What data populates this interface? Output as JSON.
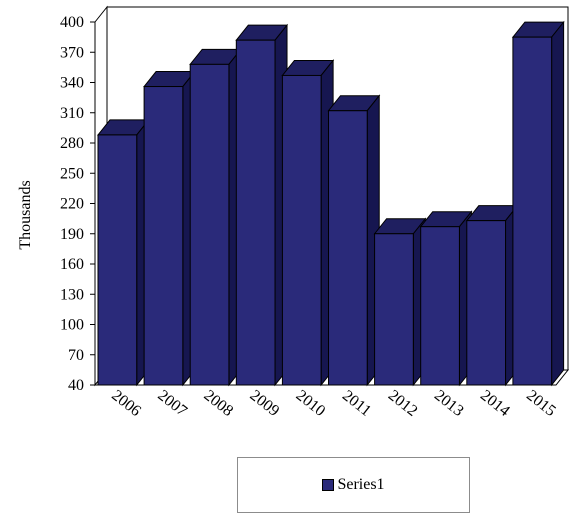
{
  "chart_data": {
    "type": "bar",
    "title": "",
    "xlabel": "",
    "ylabel": "Thousands",
    "ylim": [
      40,
      400
    ],
    "yticks": [
      40,
      70,
      100,
      130,
      160,
      190,
      220,
      250,
      280,
      310,
      340,
      370,
      400
    ],
    "categories": [
      "2006",
      "2007",
      "2008",
      "2009",
      "2010",
      "2011",
      "2012",
      "2013",
      "2014",
      "2015"
    ],
    "series": [
      {
        "name": "Series1",
        "values": [
          288,
          336,
          358,
          382,
          347,
          312,
          190,
          197,
          203,
          385
        ]
      }
    ],
    "bar_color": "#2a2a7a",
    "bar_top_color": "#1f1f60",
    "bar_side_color": "#161650",
    "legend_position": "bottom",
    "grid": false
  }
}
